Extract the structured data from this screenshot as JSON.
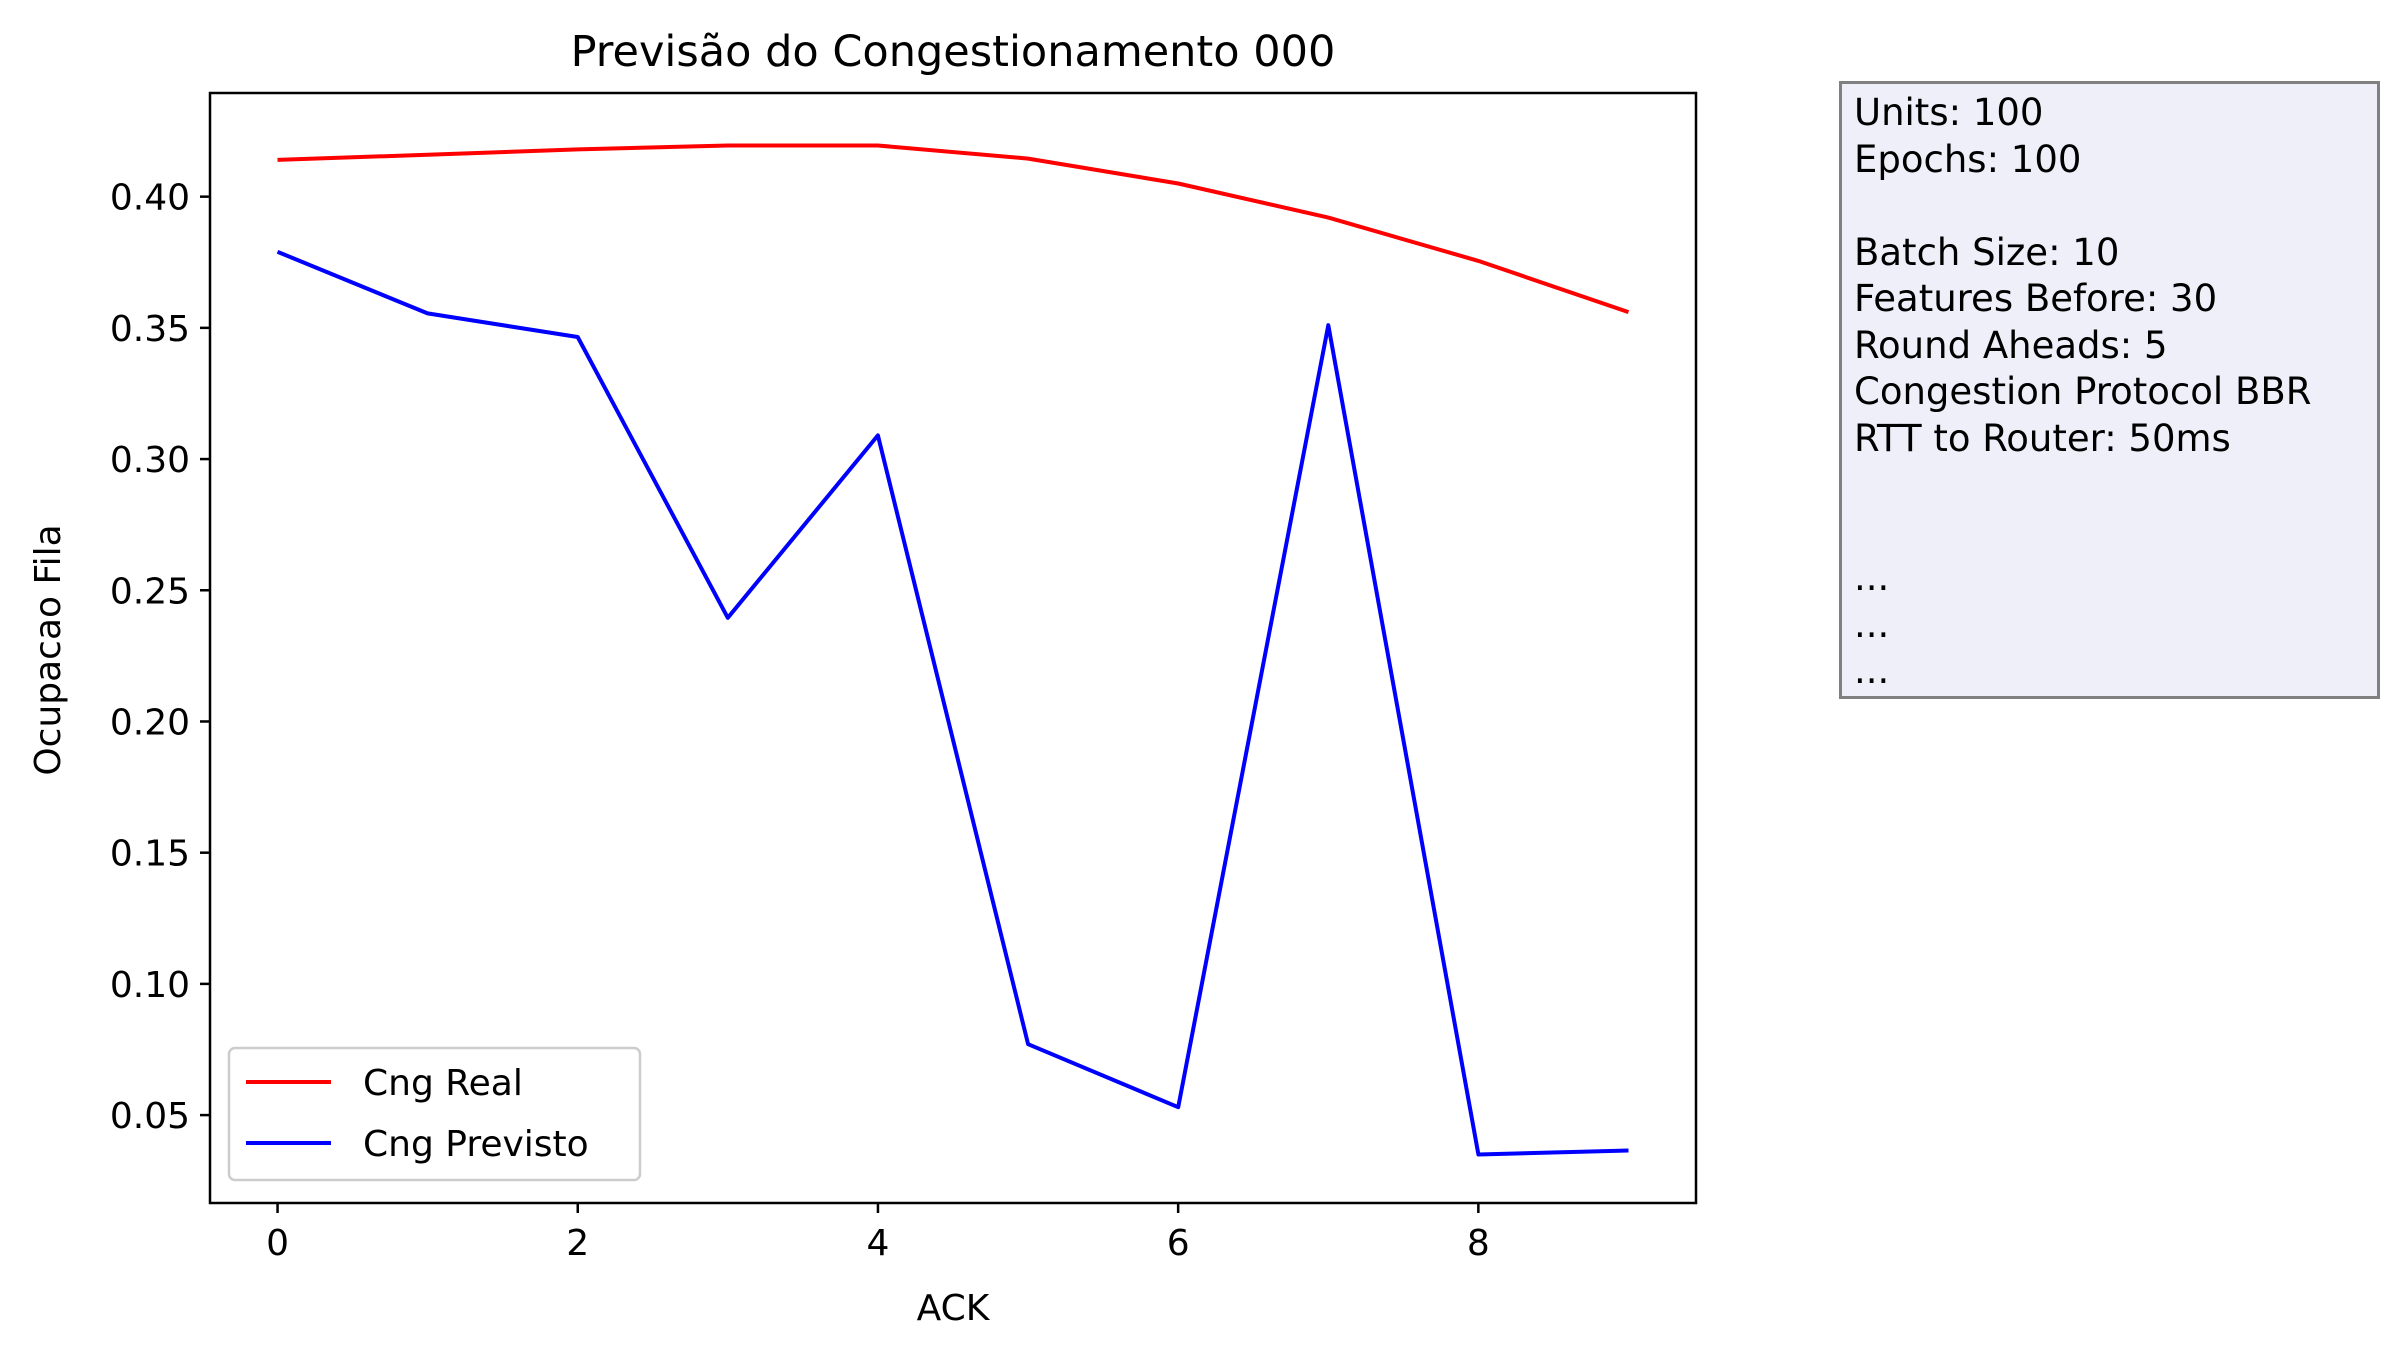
{
  "chart_data": {
    "type": "line",
    "title": "Previsão do Congestionamento 000",
    "xlabel": "ACK",
    "ylabel": "Ocupacao Fila",
    "x": [
      0,
      1,
      2,
      3,
      4,
      5,
      6,
      7,
      8,
      9
    ],
    "xlim": [
      -0.45,
      9.45
    ],
    "ylim": [
      0.0165,
      0.4395
    ],
    "xticks": [
      0,
      2,
      4,
      6,
      8
    ],
    "xtick_labels": [
      "0",
      "2",
      "4",
      "6",
      "8"
    ],
    "yticks": [
      0.05,
      0.1,
      0.15,
      0.2,
      0.25,
      0.3,
      0.35,
      0.4
    ],
    "ytick_labels": [
      "0.05",
      "0.10",
      "0.15",
      "0.20",
      "0.25",
      "0.30",
      "0.35",
      "0.40"
    ],
    "grid": false,
    "legend_position": "lower-left",
    "series": [
      {
        "name": "Cng Real",
        "color": "#ff0000",
        "values": [
          0.414,
          0.416,
          0.418,
          0.4195,
          0.4195,
          0.4145,
          0.405,
          0.392,
          0.3755,
          0.356
        ]
      },
      {
        "name": "Cng Previsto",
        "color": "#0000ff",
        "values": [
          0.379,
          0.3555,
          0.3465,
          0.2395,
          0.309,
          0.077,
          0.053,
          0.351,
          0.035,
          0.0365
        ]
      }
    ]
  },
  "info_box": {
    "lines": [
      "Units: 100",
      "Epochs: 100",
      "",
      "Batch Size: 10",
      "Features Before: 30",
      "Round Aheads: 5",
      "Congestion Protocol BBR",
      "RTT to Router: 50ms",
      "",
      "",
      "...",
      "...",
      "..."
    ]
  }
}
